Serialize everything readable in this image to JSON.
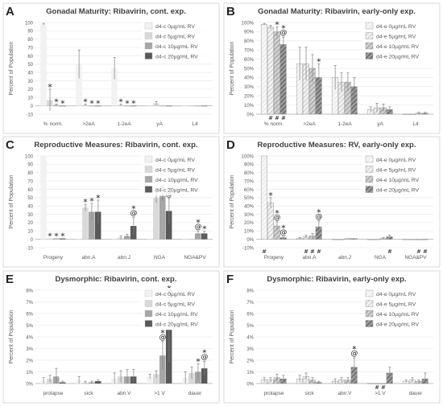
{
  "colors": {
    "c0": "#f2f2f2",
    "c5": "#d9d9d9",
    "c10": "#a6a6a6",
    "c20": "#595959",
    "axis": "#d9d9d9",
    "text": "#595959",
    "err": "#7f7f7f"
  },
  "chart_data": [
    {
      "panel_letter": "A",
      "type": "bar",
      "title": "Gonadal Maturity: Ribavirin, cont. exp.",
      "ylabel": "Percent of Population",
      "ylim": [
        -10,
        100
      ],
      "yticks": [
        -10,
        0,
        10,
        20,
        30,
        40,
        50,
        60,
        70,
        80,
        90,
        100
      ],
      "ytick_format": "int",
      "categories": [
        "% norm.",
        ">2eA",
        "1-2eA",
        "yA",
        "L4"
      ],
      "series": [
        {
          "name": "d4-c 0µg/mL RV",
          "style": "solid0",
          "values": [
            98,
            50,
            45,
            0,
            0
          ],
          "errors": [
            1,
            17,
            13,
            0,
            0
          ]
        },
        {
          "name": "d4-c 5µg/mL RV",
          "style": "solid5",
          "values": [
            7,
            1,
            1,
            3,
            0
          ],
          "errors": [
            13,
            1,
            1,
            2,
            0
          ]
        },
        {
          "name": "d4-c 10µg/mL RV",
          "style": "solid10",
          "values": [
            1,
            0,
            0,
            0,
            0
          ],
          "errors": [
            1,
            0,
            0,
            0,
            0
          ]
        },
        {
          "name": "d4-c 20µg/mL RV",
          "style": "solid20",
          "values": [
            0,
            0,
            0,
            0,
            0
          ],
          "errors": [
            0,
            0,
            0,
            0,
            0
          ]
        }
      ],
      "markers": [
        [
          0,
          1,
          "*"
        ],
        [
          0,
          2,
          "*"
        ],
        [
          0,
          3,
          "*"
        ],
        [
          1,
          1,
          "*"
        ],
        [
          1,
          2,
          "*"
        ],
        [
          1,
          3,
          "*"
        ],
        [
          2,
          1,
          "*"
        ],
        [
          2,
          2,
          "*"
        ],
        [
          2,
          3,
          "*"
        ]
      ],
      "bottom_marks": []
    },
    {
      "panel_letter": "B",
      "type": "bar",
      "title": "Gonadal Maturity: Ribavirin, early-only exp.",
      "ylabel": "Percent of Population",
      "ylim": [
        0,
        100
      ],
      "yticks": [
        0,
        10,
        20,
        30,
        40,
        50,
        60,
        70,
        80,
        90,
        100
      ],
      "ytick_format": "pct",
      "categories": [
        "% norm.",
        ">2eA",
        "1-2eA",
        "yA",
        "L4"
      ],
      "series": [
        {
          "name": "d4-e 0µg/mL RV",
          "style": "hatch0",
          "values": [
            98,
            55,
            40,
            5,
            0
          ],
          "errors": [
            1,
            18,
            13,
            3,
            0
          ]
        },
        {
          "name": "d4-e 5µg/mL RV",
          "style": "hatch5",
          "values": [
            95,
            55,
            35,
            7,
            0
          ],
          "errors": [
            2,
            18,
            10,
            5,
            0
          ]
        },
        {
          "name": "d4-e 10µg/mL RV",
          "style": "hatch10",
          "values": [
            90,
            50,
            35,
            7,
            1
          ],
          "errors": [
            5,
            15,
            10,
            4,
            1
          ]
        },
        {
          "name": "d4-e 20µg/mL RV",
          "style": "hatch20",
          "values": [
            76,
            40,
            30,
            5,
            1
          ],
          "errors": [
            8,
            15,
            10,
            3,
            1
          ]
        }
      ],
      "markers": [
        [
          0,
          2,
          "*"
        ],
        [
          0,
          3,
          "@"
        ],
        [
          0,
          3,
          "*"
        ],
        [
          1,
          3,
          "*"
        ]
      ],
      "bottom_marks": [
        [
          0,
          1,
          "#"
        ],
        [
          0,
          2,
          "#"
        ],
        [
          0,
          3,
          "#"
        ]
      ]
    },
    {
      "panel_letter": "C",
      "type": "bar",
      "title": "Reproductive Measures: Ribavirin, cont. exp.",
      "ylabel": "Percent of Population",
      "ylim": [
        -10,
        100
      ],
      "yticks": [
        -10,
        0,
        10,
        20,
        30,
        40,
        50,
        60,
        70,
        80,
        90,
        100
      ],
      "ytick_format": "int",
      "categories": [
        "Progeny",
        "abn.A",
        "abn.J",
        "NGA",
        "NGA&PV"
      ],
      "series": [
        {
          "name": "d4-c 0µg/mL RV",
          "style": "solid0",
          "values": [
            100,
            0,
            0,
            0,
            0
          ],
          "errors": [
            0,
            0,
            0,
            0,
            0
          ]
        },
        {
          "name": "d4-c 5µg/mL RV",
          "style": "solid5",
          "values": [
            1,
            38,
            2,
            50,
            0
          ],
          "errors": [
            0,
            4,
            2,
            6,
            0
          ]
        },
        {
          "name": "d4-c 10µg/mL RV",
          "style": "solid10",
          "values": [
            1,
            33,
            4,
            52,
            7
          ],
          "errors": [
            0,
            10,
            2,
            6,
            3
          ]
        },
        {
          "name": "d4-c 20µg/mL RV",
          "style": "solid20",
          "values": [
            1,
            33,
            16,
            34,
            7
          ],
          "errors": [
            0,
            14,
            10,
            15,
            3
          ]
        }
      ],
      "markers": [
        [
          0,
          1,
          "*"
        ],
        [
          0,
          2,
          "*"
        ],
        [
          0,
          3,
          "*"
        ],
        [
          1,
          1,
          "*"
        ],
        [
          1,
          2,
          "*"
        ],
        [
          1,
          3,
          "*"
        ],
        [
          2,
          3,
          "@"
        ],
        [
          2,
          3,
          "*"
        ],
        [
          3,
          1,
          "*"
        ],
        [
          3,
          2,
          "*"
        ],
        [
          3,
          3,
          "@"
        ],
        [
          3,
          3,
          "*"
        ],
        [
          4,
          2,
          "@"
        ],
        [
          4,
          2,
          "*"
        ],
        [
          4,
          3,
          "*"
        ]
      ],
      "bottom_marks": []
    },
    {
      "panel_letter": "D",
      "type": "bar",
      "title": "Reproductive Measures: RV, early-only exp.",
      "ylabel": "Percent of Population",
      "ylim": [
        -10,
        100
      ],
      "yticks": [
        -10,
        0,
        10,
        20,
        30,
        40,
        50,
        60,
        70,
        80,
        90,
        100
      ],
      "ytick_format": "pct",
      "categories": [
        "Progeny",
        "abn.A",
        "abn.J",
        "NGA",
        "NGA&PV"
      ],
      "series": [
        {
          "name": "d4-e 0µg/mL RV",
          "style": "hatch0",
          "values": [
            100,
            1,
            0,
            0,
            0
          ],
          "errors": [
            0,
            1,
            0,
            0,
            0
          ]
        },
        {
          "name": "d4-e 5µg/mL RV",
          "style": "hatch5",
          "values": [
            44,
            3,
            0,
            0,
            0
          ],
          "errors": [
            6,
            2,
            0,
            0,
            0
          ]
        },
        {
          "name": "d4-e 10µg/mL RV",
          "style": "hatch10",
          "values": [
            16,
            4,
            1,
            1,
            0
          ],
          "errors": [
            5,
            3,
            0,
            1,
            0
          ]
        },
        {
          "name": "d4-e 20µg/mL RV",
          "style": "hatch20",
          "values": [
            2,
            15,
            1,
            3,
            0
          ],
          "errors": [
            1,
            7,
            0,
            2,
            0
          ]
        }
      ],
      "markers": [
        [
          0,
          1,
          "*"
        ],
        [
          0,
          2,
          "@"
        ],
        [
          0,
          2,
          "*"
        ],
        [
          0,
          3,
          "@"
        ],
        [
          0,
          3,
          "*"
        ],
        [
          1,
          3,
          "@"
        ],
        [
          1,
          3,
          "*"
        ]
      ],
      "bottom_marks": [
        [
          0,
          0,
          "#"
        ],
        [
          1,
          1,
          "#"
        ],
        [
          1,
          2,
          "#"
        ],
        [
          1,
          3,
          "#"
        ],
        [
          3,
          3,
          "#"
        ],
        [
          4,
          2,
          "#"
        ],
        [
          4,
          3,
          "#"
        ]
      ]
    },
    {
      "panel_letter": "E",
      "type": "bar",
      "title": "Dysmorphic: Ribavirin, cont. exp.",
      "ylabel": "Percent of Population",
      "ylim": [
        0,
        8
      ],
      "yticks": [
        0,
        1,
        2,
        3,
        4,
        5,
        6,
        7,
        8
      ],
      "ytick_format": "pct",
      "categories": [
        "prolapse",
        "sick",
        "abn.V",
        ">1 V",
        "dauer"
      ],
      "series": [
        {
          "name": "d4-c 0µg/mL RV",
          "style": "solid0",
          "values": [
            0.2,
            0.3,
            0.4,
            0.6,
            0.5
          ],
          "errors": [
            0.3,
            0.3,
            0.5,
            0.2,
            0.5
          ]
        },
        {
          "name": "d4-c 5µg/mL RV",
          "style": "solid5",
          "values": [
            0.4,
            0.1,
            0.6,
            0.8,
            0.9
          ],
          "errors": [
            0.3,
            0.1,
            0.5,
            0.3,
            0.5
          ]
        },
        {
          "name": "d4-c 10µg/mL RV",
          "style": "solid10",
          "values": [
            0.6,
            0.1,
            0.6,
            2.4,
            1.0
          ],
          "errors": [
            0.7,
            0.1,
            0.6,
            1.2,
            0.7
          ]
        },
        {
          "name": "d4-c 20µg/mL RV",
          "style": "solid20",
          "values": [
            0.1,
            0.2,
            0.6,
            4.6,
            1.3
          ],
          "errors": [
            0.1,
            0.1,
            0.6,
            2.8,
            0.6
          ]
        }
      ],
      "markers": [
        [
          3,
          2,
          "@"
        ],
        [
          3,
          2,
          "*"
        ],
        [
          3,
          3,
          "@"
        ],
        [
          3,
          3,
          "*"
        ],
        [
          4,
          2,
          "*"
        ],
        [
          4,
          3,
          "@"
        ],
        [
          4,
          3,
          "*"
        ]
      ],
      "bottom_marks": []
    },
    {
      "panel_letter": "F",
      "type": "bar",
      "title": "Dysmorphic: Ribavirin, early-only exp.",
      "ylabel": "Percent of Population",
      "ylim": [
        0,
        8
      ],
      "yticks": [
        0,
        1,
        2,
        3,
        4,
        5,
        6,
        7,
        8
      ],
      "ytick_format": "pct",
      "categories": [
        "prolapse",
        "sick",
        "abn.V",
        ">1 V",
        "dauer"
      ],
      "series": [
        {
          "name": "d4-e 0µg/mL RV",
          "style": "hatch0",
          "values": [
            0.3,
            0.4,
            0.2,
            0,
            0.2
          ],
          "errors": [
            0.2,
            0.3,
            0.2,
            0,
            0.1
          ]
        },
        {
          "name": "d4-e 5µg/mL RV",
          "style": "hatch5",
          "values": [
            0.3,
            0.6,
            0.3,
            0,
            0.3
          ],
          "errors": [
            0.2,
            0.3,
            0.2,
            0,
            0.2
          ]
        },
        {
          "name": "d4-e 10µg/mL RV",
          "style": "hatch10",
          "values": [
            0.5,
            0.3,
            0.3,
            0,
            0.2
          ],
          "errors": [
            0.3,
            0.2,
            0.2,
            0,
            0.1
          ]
        },
        {
          "name": "d4-e 20µg/mL RV",
          "style": "hatch20",
          "values": [
            0.4,
            0.1,
            1.4,
            0.9,
            0.4
          ],
          "errors": [
            0.3,
            0.1,
            0.8,
            0.5,
            0.5
          ]
        }
      ],
      "markers": [
        [
          2,
          3,
          "@"
        ],
        [
          2,
          3,
          "*"
        ]
      ],
      "bottom_marks": [
        [
          3,
          1,
          "#"
        ],
        [
          3,
          2,
          "#"
        ]
      ]
    }
  ]
}
